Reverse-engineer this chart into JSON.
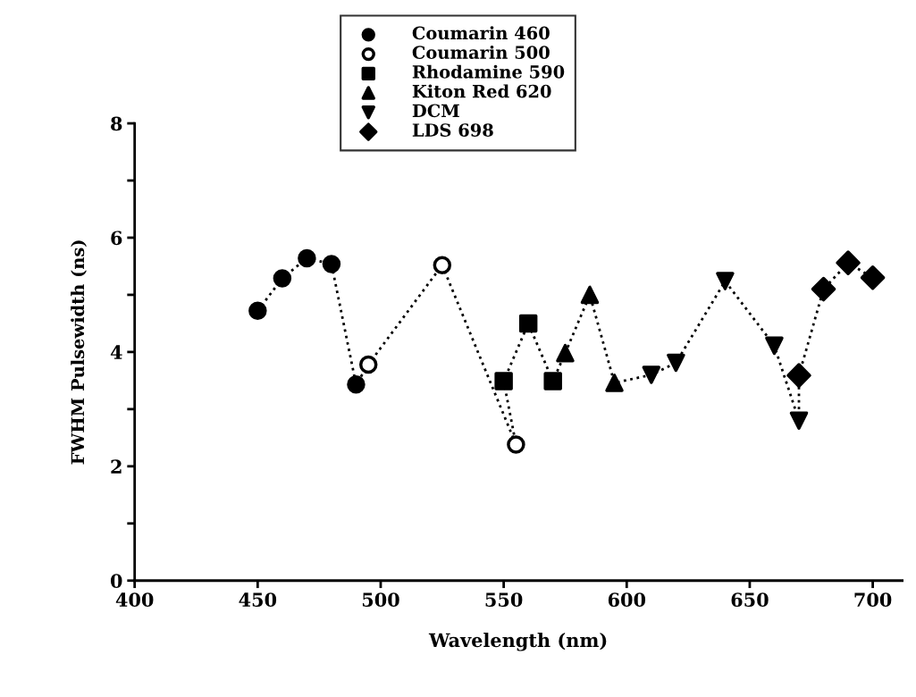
{
  "chart_data": {
    "type": "scatter",
    "xlabel": "Wavelength (nm)",
    "ylabel": "FWHM Pulsewidth (ns)",
    "xlim": [
      400,
      712
    ],
    "xticks": [
      400,
      450,
      500,
      550,
      600,
      650,
      700
    ],
    "ylim": [
      0,
      8
    ],
    "yticks": [
      0,
      {
        "value": 1,
        "label": null
      },
      2,
      {
        "value": 3,
        "label": null
      },
      4,
      {
        "value": 5,
        "label": null
      },
      6,
      {
        "value": 7,
        "label": null
      },
      8
    ],
    "grid": false,
    "legend": "top",
    "series": [
      {
        "type": "line",
        "color": "#000000",
        "marker": "none",
        "line_style": "dotted",
        "x": [
          450,
          460,
          470,
          480,
          490,
          495,
          525,
          555,
          550,
          560,
          570,
          575,
          585,
          595,
          610,
          620,
          640,
          660,
          670,
          670,
          680,
          690,
          700
        ],
        "values": [
          4.72,
          5.29,
          5.64,
          5.54,
          3.43,
          3.78,
          5.52,
          2.38,
          3.49,
          4.5,
          3.49,
          3.98,
          5.0,
          3.46,
          3.6,
          3.81,
          5.24,
          4.11,
          2.8,
          3.59,
          5.1,
          5.56,
          5.3
        ]
      },
      {
        "name": "Coumarin 460",
        "color": "#000000",
        "marker": "circle",
        "x": [
          450,
          460,
          470,
          480,
          490
        ],
        "values": [
          4.72,
          5.29,
          5.64,
          5.54,
          3.43
        ]
      },
      {
        "name": "Coumarin 500",
        "color": "#000000",
        "marker": "open_circle",
        "x": [
          495,
          525,
          555
        ],
        "values": [
          3.78,
          5.52,
          2.38
        ]
      },
      {
        "name": "Rhodamine 590",
        "color": "#000000",
        "marker": "square",
        "x": [
          550,
          560,
          570
        ],
        "values": [
          3.49,
          4.5,
          3.49
        ]
      },
      {
        "name": "Kiton Red 620",
        "color": "#000000",
        "marker": "triangle",
        "x": [
          575,
          585,
          595
        ],
        "values": [
          3.98,
          5.0,
          3.46
        ]
      },
      {
        "name": "DCM",
        "color": "#000000",
        "marker": "triangle_down",
        "x": [
          610,
          620,
          640,
          660,
          670
        ],
        "values": [
          3.6,
          3.81,
          5.24,
          4.11,
          2.8
        ]
      },
      {
        "name": "LDS 698",
        "color": "#000000",
        "marker": "diamond",
        "x": [
          670,
          680,
          690,
          700
        ],
        "values": [
          3.59,
          5.1,
          5.56,
          5.3
        ]
      }
    ]
  }
}
